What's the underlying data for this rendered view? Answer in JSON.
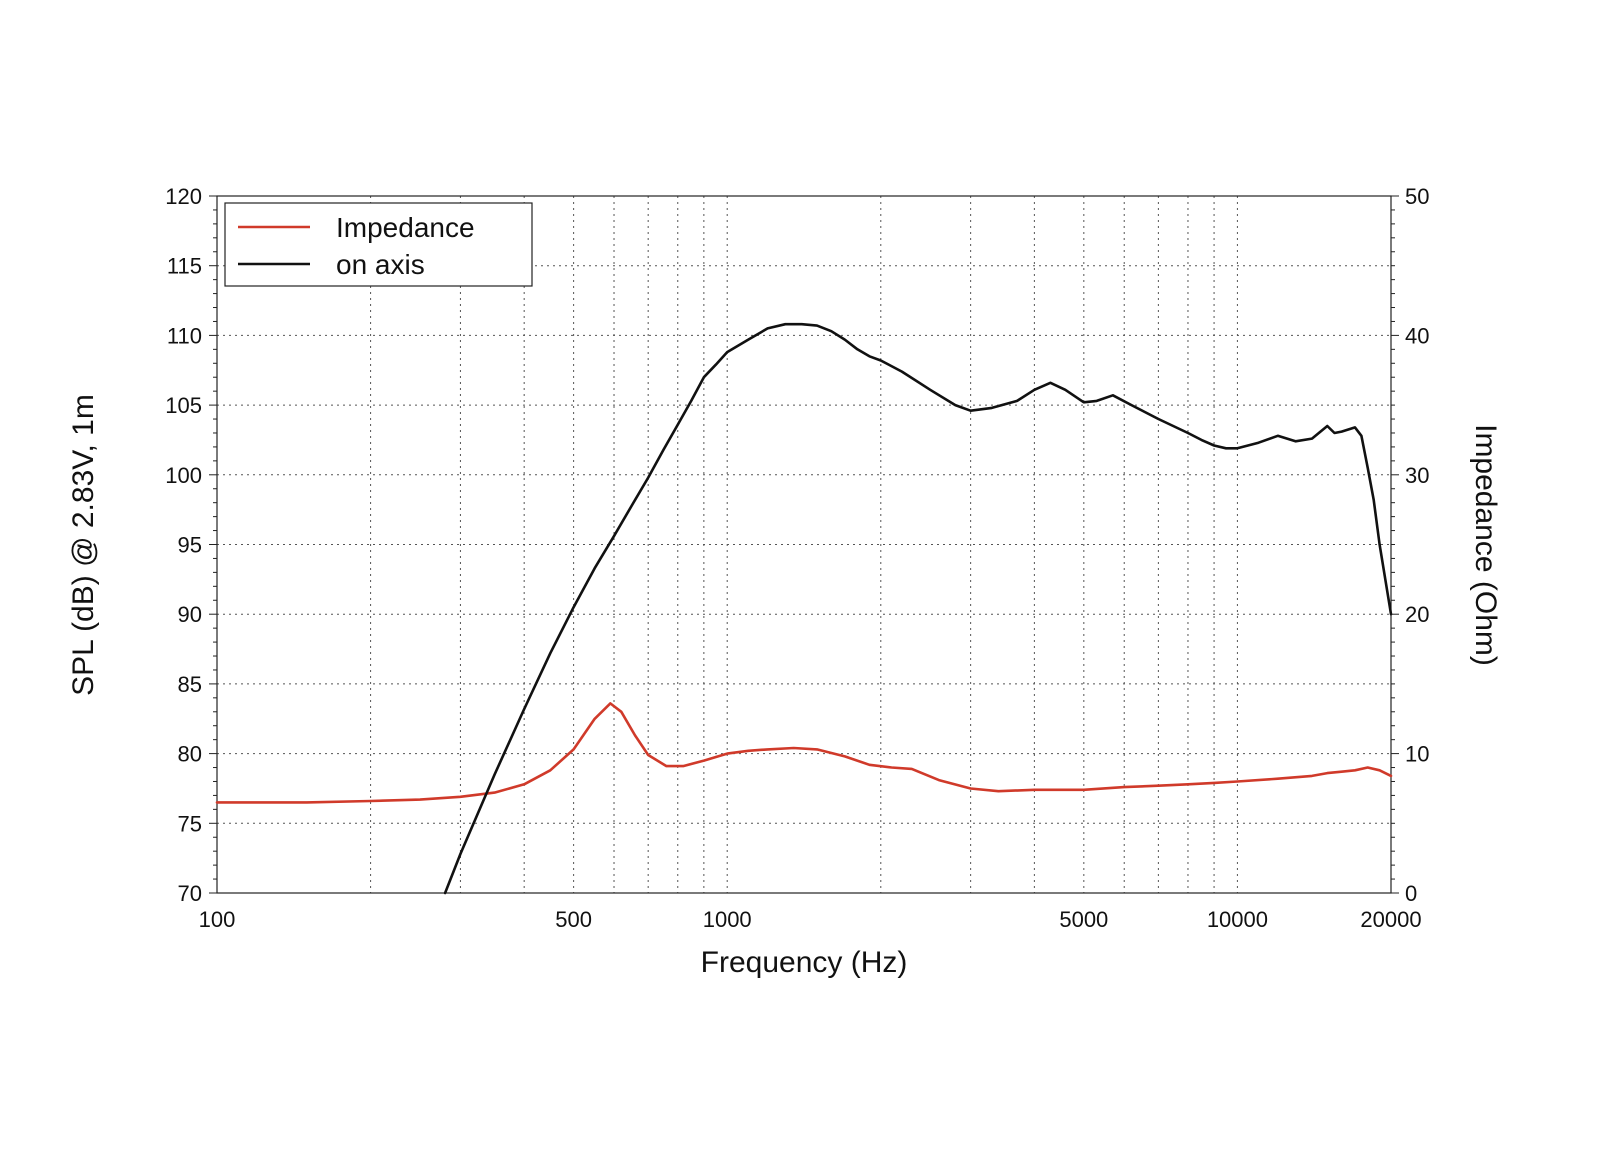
{
  "chart_data": {
    "type": "line",
    "xlabel": "Frequency (Hz)",
    "ylabel": "SPL (dB) @ 2.83V, 1m",
    "y2label": "Impedance (Ohm)",
    "xscale": "log",
    "xlim": [
      100,
      20000
    ],
    "ylim": [
      70,
      120
    ],
    "y2lim": [
      0,
      50
    ],
    "x_ticks": [
      100,
      500,
      1000,
      5000,
      10000,
      20000
    ],
    "y_ticks": [
      70,
      75,
      80,
      85,
      90,
      95,
      100,
      105,
      110,
      115,
      120
    ],
    "y2_ticks": [
      0,
      10,
      20,
      30,
      40,
      50
    ],
    "grid": true,
    "legend_position": "top-left",
    "series": [
      {
        "name": "Impedance",
        "axis": "right",
        "color": "#d03a2a",
        "x": [
          100,
          150,
          200,
          250,
          300,
          350,
          400,
          450,
          500,
          550,
          590,
          620,
          660,
          700,
          760,
          820,
          900,
          1000,
          1100,
          1200,
          1350,
          1500,
          1700,
          1900,
          2100,
          2300,
          2600,
          3000,
          3400,
          4000,
          5000,
          6000,
          7000,
          8000,
          9000,
          10000,
          12000,
          14000,
          15000,
          16000,
          17000,
          18000,
          19000,
          20000
        ],
        "y": [
          6.5,
          6.5,
          6.6,
          6.7,
          6.9,
          7.2,
          7.8,
          8.8,
          10.3,
          12.5,
          13.6,
          13.0,
          11.3,
          9.9,
          9.1,
          9.1,
          9.5,
          10.0,
          10.2,
          10.3,
          10.4,
          10.3,
          9.8,
          9.2,
          9.0,
          8.9,
          8.1,
          7.5,
          7.3,
          7.4,
          7.4,
          7.6,
          7.7,
          7.8,
          7.9,
          8.0,
          8.2,
          8.4,
          8.6,
          8.7,
          8.8,
          9.0,
          8.8,
          8.4
        ]
      },
      {
        "name": "on axis",
        "axis": "left",
        "color": "#111111",
        "x": [
          280,
          300,
          350,
          400,
          450,
          500,
          550,
          600,
          650,
          700,
          750,
          800,
          850,
          900,
          950,
          1000,
          1100,
          1200,
          1300,
          1400,
          1500,
          1600,
          1700,
          1800,
          1900,
          2000,
          2200,
          2500,
          2800,
          3000,
          3300,
          3700,
          4000,
          4300,
          4600,
          5000,
          5300,
          5700,
          6200,
          7000,
          8000,
          8500,
          9000,
          9500,
          10000,
          11000,
          12000,
          13000,
          14000,
          15000,
          15500,
          16000,
          17000,
          17500,
          18000,
          18500,
          19000,
          20000
        ],
        "y": [
          70.0,
          72.8,
          78.5,
          83.2,
          87.2,
          90.5,
          93.3,
          95.6,
          97.8,
          99.8,
          101.8,
          103.6,
          105.3,
          107.0,
          107.9,
          108.8,
          109.7,
          110.5,
          110.8,
          110.8,
          110.7,
          110.3,
          109.7,
          109.0,
          108.5,
          108.2,
          107.4,
          106.1,
          105.0,
          104.6,
          104.8,
          105.3,
          106.1,
          106.6,
          106.1,
          105.2,
          105.3,
          105.7,
          105.0,
          104.0,
          103.0,
          102.5,
          102.1,
          101.9,
          101.9,
          102.3,
          102.8,
          102.4,
          102.6,
          103.5,
          103.0,
          103.1,
          103.4,
          102.8,
          100.5,
          98.2,
          95.0,
          90.0
        ]
      }
    ]
  }
}
